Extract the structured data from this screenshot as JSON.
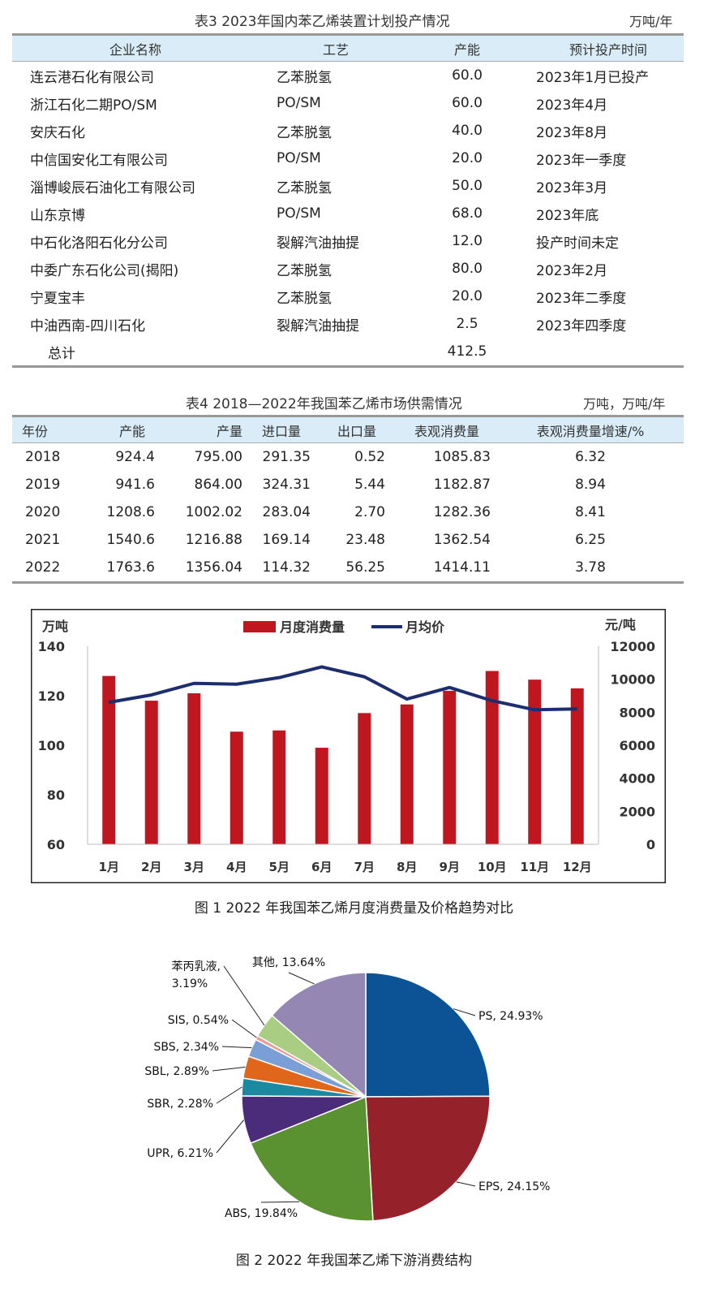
{
  "table3": {
    "title": "表3  2023年国内苯乙烯装置计划投产情况",
    "unit": "万吨/年",
    "headers": [
      "企业名称",
      "工艺",
      "产能",
      "预计投产时间"
    ],
    "rows": [
      [
        "连云港石化有限公司",
        "乙苯脱氢",
        "60.0",
        "2023年1月已投产"
      ],
      [
        "浙江石化二期PO/SM",
        "PO/SM",
        "60.0",
        "2023年4月"
      ],
      [
        "安庆石化",
        "乙苯脱氢",
        "40.0",
        "2023年8月"
      ],
      [
        "中信国安化工有限公司",
        "PO/SM",
        "20.0",
        "2023年一季度"
      ],
      [
        "淄博峻辰石油化工有限公司",
        "乙苯脱氢",
        "50.0",
        "2023年3月"
      ],
      [
        "山东京博",
        "PO/SM",
        "68.0",
        "2023年底"
      ],
      [
        "中石化洛阳石化分公司",
        "裂解汽油抽提",
        "12.0",
        "投产时间未定"
      ],
      [
        "中委广东石化公司(揭阳)",
        "乙苯脱氢",
        "80.0",
        "2023年2月"
      ],
      [
        "宁夏宝丰",
        "乙苯脱氢",
        "20.0",
        "2023年二季度"
      ],
      [
        "中油西南-四川石化",
        "裂解汽油抽提",
        "2.5",
        "2023年四季度"
      ]
    ],
    "total_label": "总计",
    "total_value": "412.5"
  },
  "table4": {
    "title": "表4  2018—2022年我国苯乙烯市场供需情况",
    "unit": "万吨，万吨/年",
    "headers": [
      "年份",
      "产能",
      "产量",
      "进口量",
      "出口量",
      "表观消费量",
      "表观消费量增速/%"
    ],
    "rows": [
      [
        "2018",
        "924.4",
        "795.00",
        "291.35",
        "0.52",
        "1085.83",
        "6.32"
      ],
      [
        "2019",
        "941.6",
        "864.00",
        "324.31",
        "5.44",
        "1182.87",
        "8.94"
      ],
      [
        "2020",
        "1208.6",
        "1002.02",
        "283.04",
        "2.70",
        "1282.36",
        "8.41"
      ],
      [
        "2021",
        "1540.6",
        "1216.88",
        "169.14",
        "23.48",
        "1362.54",
        "6.25"
      ],
      [
        "2022",
        "1763.6",
        "1356.04",
        "114.32",
        "56.25",
        "1414.11",
        "3.78"
      ]
    ]
  },
  "figure1": {
    "caption": "图 1  2022 年我国苯乙烯月度消费量及价格趋势对比",
    "chart_data": {
      "type": "bar",
      "categories": [
        "1月",
        "2月",
        "3月",
        "4月",
        "5月",
        "6月",
        "7月",
        "8月",
        "9月",
        "10月",
        "11月",
        "12月"
      ],
      "series": [
        {
          "name": "月度消费量",
          "type": "bar",
          "axis": "left",
          "color": "#c0161f",
          "values": [
            128,
            118,
            121,
            105.5,
            106,
            99,
            113,
            116.5,
            122,
            130,
            126.5,
            123
          ]
        },
        {
          "name": "月均价",
          "type": "line",
          "axis": "right",
          "color": "#1c2e6e",
          "values": [
            8600,
            9050,
            9750,
            9700,
            10100,
            10750,
            10150,
            8800,
            9500,
            8700,
            8150,
            8200
          ]
        }
      ],
      "ylabel_left": "万吨",
      "ylabel_right": "元/吨",
      "ylim_left": [
        60,
        140
      ],
      "yticks_left": [
        "60",
        "80",
        "100",
        "120",
        "140"
      ],
      "ylim_right": [
        0,
        12000
      ],
      "yticks_right": [
        "0",
        "2000",
        "4000",
        "6000",
        "8000",
        "10000",
        "12000"
      ],
      "legend": "top-center",
      "grid": false
    }
  },
  "figure2": {
    "caption": "图 2  2022 年我国苯乙烯下游消费结构",
    "chart_data": {
      "type": "pie",
      "slices": [
        {
          "label": "PS, 24.93%",
          "value": 24.93,
          "color": "#0b5394"
        },
        {
          "label": "EPS, 24.15%",
          "value": 24.15,
          "color": "#95222b"
        },
        {
          "label": "ABS, 19.84%",
          "value": 19.84,
          "color": "#5a9232"
        },
        {
          "label": "UPR, 6.21%",
          "value": 6.21,
          "color": "#4a2c7a"
        },
        {
          "label": "SBR, 2.28%",
          "value": 2.28,
          "color": "#1b8aa0"
        },
        {
          "label": "SBL, 2.89%",
          "value": 2.89,
          "color": "#e0661b"
        },
        {
          "label": "SBS, 2.34%",
          "value": 2.34,
          "color": "#7a9fd6"
        },
        {
          "label": "SIS, 0.54%",
          "value": 0.54,
          "color": "#e69a9a"
        },
        {
          "label": "苯丙乳液,",
          "label2": "3.19%",
          "value": 3.19,
          "color": "#a9cd82"
        },
        {
          "label": "其他, 13.64%",
          "value": 13.64,
          "color": "#9487b4"
        }
      ]
    }
  }
}
